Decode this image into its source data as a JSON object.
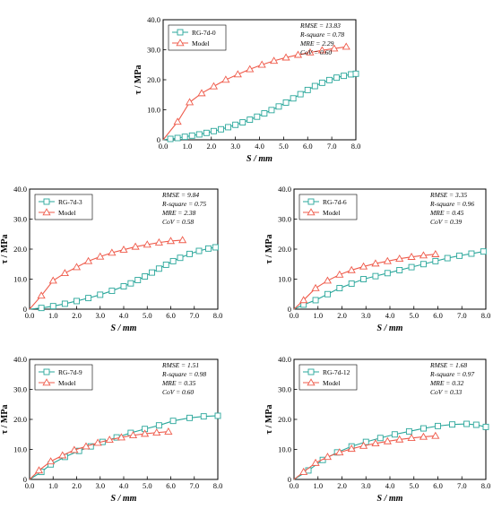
{
  "colors": {
    "experiment": "#2aa79b",
    "model": "#ef5b4b",
    "axis": "#000000"
  },
  "chart_data": [
    {
      "type": "line",
      "xlabel": "S / mm",
      "ylabel": "τ / MPa",
      "xlim": [
        0,
        8
      ],
      "ylim": [
        0,
        40
      ],
      "xticks": [
        "0.0",
        "1.0",
        "2.0",
        "3.0",
        "4.0",
        "5.0",
        "6.0",
        "7.0",
        "8.0"
      ],
      "yticks": [
        "0",
        "10.0",
        "20.0",
        "30.0",
        "40.0"
      ],
      "legend": [
        "RG-7d-0",
        "Model"
      ],
      "stats": [
        "RMSE = 13.83",
        "R-square = 0.78",
        "MRE = 2.29",
        "CoV = 0.60"
      ],
      "series": [
        {
          "name": "RG-7d-0",
          "marker": "square",
          "x": [
            0,
            0.3,
            0.6,
            0.9,
            1.2,
            1.5,
            1.8,
            2.1,
            2.4,
            2.7,
            3.0,
            3.3,
            3.6,
            3.9,
            4.2,
            4.5,
            4.8,
            5.1,
            5.4,
            5.7,
            6.0,
            6.3,
            6.6,
            6.9,
            7.2,
            7.5,
            7.8,
            8.0
          ],
          "y": [
            0,
            0.3,
            0.6,
            1.0,
            1.4,
            1.8,
            2.3,
            2.9,
            3.5,
            4.2,
            5.0,
            5.8,
            6.7,
            7.7,
            8.8,
            9.9,
            11.1,
            12.4,
            13.8,
            15.2,
            16.6,
            17.9,
            19.0,
            19.9,
            20.7,
            21.3,
            21.8,
            22.0
          ]
        },
        {
          "name": "Model",
          "marker": "triangle",
          "x": [
            0,
            0.6,
            1.1,
            1.6,
            2.1,
            2.6,
            3.1,
            3.6,
            4.1,
            4.6,
            5.1,
            5.6,
            6.1,
            6.6,
            7.1,
            7.6
          ],
          "y": [
            0,
            6.0,
            12.5,
            15.5,
            17.8,
            20.0,
            21.8,
            23.5,
            25.0,
            26.3,
            27.4,
            28.3,
            29.1,
            29.8,
            30.4,
            31.0
          ]
        }
      ]
    },
    {
      "type": "line",
      "xlabel": "S / mm",
      "ylabel": "τ / MPa",
      "xlim": [
        0,
        8
      ],
      "ylim": [
        0,
        40
      ],
      "xticks": [
        "0.0",
        "1.0",
        "2.0",
        "3.0",
        "4.0",
        "5.0",
        "6.0",
        "7.0",
        "8.0"
      ],
      "yticks": [
        "0",
        "10.0",
        "20.0",
        "30.0",
        "40.0"
      ],
      "legend": [
        "RG-7d-3",
        "Model"
      ],
      "stats": [
        "RMSE = 9.84",
        "R-square = 0.75",
        "MRE = 2.38",
        "CoV = 0.58"
      ],
      "series": [
        {
          "name": "RG-7d-3",
          "marker": "square",
          "x": [
            0,
            0.5,
            1.0,
            1.5,
            2.0,
            2.5,
            3.0,
            3.5,
            4.0,
            4.3,
            4.6,
            4.9,
            5.2,
            5.5,
            5.8,
            6.1,
            6.4,
            6.8,
            7.2,
            7.6,
            7.9
          ],
          "y": [
            0,
            0.4,
            1.0,
            1.8,
            2.7,
            3.7,
            4.8,
            6.1,
            7.6,
            8.6,
            9.7,
            10.9,
            12.2,
            13.5,
            14.8,
            16.0,
            17.1,
            18.4,
            19.4,
            20.2,
            20.6
          ]
        },
        {
          "name": "Model",
          "marker": "triangle",
          "x": [
            0,
            0.5,
            1.0,
            1.5,
            2.0,
            2.5,
            3.0,
            3.5,
            4.0,
            4.5,
            5.0,
            5.5,
            6.0,
            6.5
          ],
          "y": [
            0,
            4.5,
            9.5,
            12.0,
            14.0,
            16.0,
            17.5,
            18.8,
            19.8,
            20.8,
            21.5,
            22.2,
            22.7,
            23.0
          ]
        }
      ]
    },
    {
      "type": "line",
      "xlabel": "S / mm",
      "ylabel": "τ / MPa",
      "xlim": [
        0,
        8
      ],
      "ylim": [
        0,
        40
      ],
      "xticks": [
        "0.0",
        "1.0",
        "2.0",
        "3.0",
        "4.0",
        "5.0",
        "6.0",
        "7.0",
        "8.0"
      ],
      "yticks": [
        "0",
        "10.0",
        "20.0",
        "30.0",
        "40.0"
      ],
      "legend": [
        "RG-7d-6",
        "Model"
      ],
      "stats": [
        "RMSE = 3.35",
        "R-square = 0.96",
        "MRE = 0.45",
        "CoV = 0.39"
      ],
      "series": [
        {
          "name": "RG-7d-6",
          "marker": "square",
          "x": [
            0,
            0.4,
            0.9,
            1.4,
            1.9,
            2.4,
            2.9,
            3.4,
            3.9,
            4.4,
            4.9,
            5.4,
            5.9,
            6.4,
            6.9,
            7.4,
            7.9
          ],
          "y": [
            0,
            1.5,
            3.0,
            5.0,
            7.0,
            8.5,
            10.0,
            11.0,
            12.0,
            13.0,
            14.0,
            15.0,
            16.0,
            17.0,
            17.8,
            18.5,
            19.2
          ]
        },
        {
          "name": "Model",
          "marker": "triangle",
          "x": [
            0,
            0.4,
            0.9,
            1.4,
            1.9,
            2.4,
            2.9,
            3.4,
            3.9,
            4.4,
            4.9,
            5.4,
            5.9
          ],
          "y": [
            0,
            3.0,
            7.0,
            9.5,
            11.5,
            13.0,
            14.2,
            15.2,
            16.0,
            16.8,
            17.4,
            17.9,
            18.3
          ]
        }
      ]
    },
    {
      "type": "line",
      "xlabel": "S / mm",
      "ylabel": "τ / MPa",
      "xlim": [
        0,
        8
      ],
      "ylim": [
        0,
        40
      ],
      "xticks": [
        "0.0",
        "1.0",
        "2.0",
        "3.0",
        "4.0",
        "5.0",
        "6.0",
        "7.0",
        "8.0"
      ],
      "yticks": [
        "0",
        "10.0",
        "20.0",
        "30.0",
        "40.0"
      ],
      "legend": [
        "RG-7d-9",
        "Model"
      ],
      "stats": [
        "RMSE = 1.51",
        "R-square = 0.98",
        "MRE = 0.35",
        "CoV = 0.60"
      ],
      "series": [
        {
          "name": "RG-7d-9",
          "marker": "square",
          "x": [
            0,
            0.5,
            0.9,
            1.5,
            2.1,
            2.6,
            3.1,
            3.7,
            4.3,
            4.9,
            5.5,
            6.1,
            6.8,
            7.4,
            8.0
          ],
          "y": [
            0,
            2.5,
            5.0,
            7.5,
            9.5,
            11.0,
            12.5,
            14.0,
            15.5,
            16.8,
            18.0,
            19.5,
            20.5,
            21.0,
            21.2
          ]
        },
        {
          "name": "Model",
          "marker": "triangle",
          "x": [
            0,
            0.4,
            0.9,
            1.4,
            1.9,
            2.4,
            2.9,
            3.4,
            3.9,
            4.4,
            4.9,
            5.4,
            5.9
          ],
          "y": [
            0,
            3.0,
            6.0,
            8.0,
            9.8,
            11.0,
            12.2,
            13.2,
            14.0,
            14.7,
            15.2,
            15.6,
            15.9
          ]
        }
      ]
    },
    {
      "type": "line",
      "xlabel": "S / mm",
      "ylabel": "τ / MPa",
      "xlim": [
        0,
        8
      ],
      "ylim": [
        0,
        40
      ],
      "xticks": [
        "0.0",
        "1.0",
        "2.0",
        "3.0",
        "4.0",
        "5.0",
        "6.0",
        "7.0",
        "8.0"
      ],
      "yticks": [
        "0",
        "10.0",
        "20.0",
        "30.0",
        "40.0"
      ],
      "legend": [
        "RG-7d-12",
        "Model"
      ],
      "stats": [
        "RMSE = 1.68",
        "R-square = 0.97",
        "MRE = 0.32",
        "CoV = 0.33"
      ],
      "series": [
        {
          "name": "RG-7d-12",
          "marker": "square",
          "x": [
            0,
            0.6,
            1.2,
            1.8,
            2.4,
            3.0,
            3.6,
            4.2,
            4.8,
            5.4,
            6.0,
            6.6,
            7.2,
            7.6,
            8.0
          ],
          "y": [
            0,
            3.0,
            6.5,
            9.0,
            11.0,
            12.5,
            13.8,
            15.0,
            16.0,
            17.0,
            17.8,
            18.3,
            18.5,
            18.2,
            17.5
          ]
        },
        {
          "name": "Model",
          "marker": "triangle",
          "x": [
            0,
            0.4,
            0.9,
            1.4,
            1.9,
            2.4,
            2.9,
            3.4,
            3.9,
            4.4,
            4.9,
            5.4,
            5.9
          ],
          "y": [
            0,
            2.5,
            5.5,
            7.5,
            9.0,
            10.2,
            11.2,
            12.0,
            12.7,
            13.3,
            13.8,
            14.2,
            14.5
          ]
        }
      ]
    }
  ]
}
